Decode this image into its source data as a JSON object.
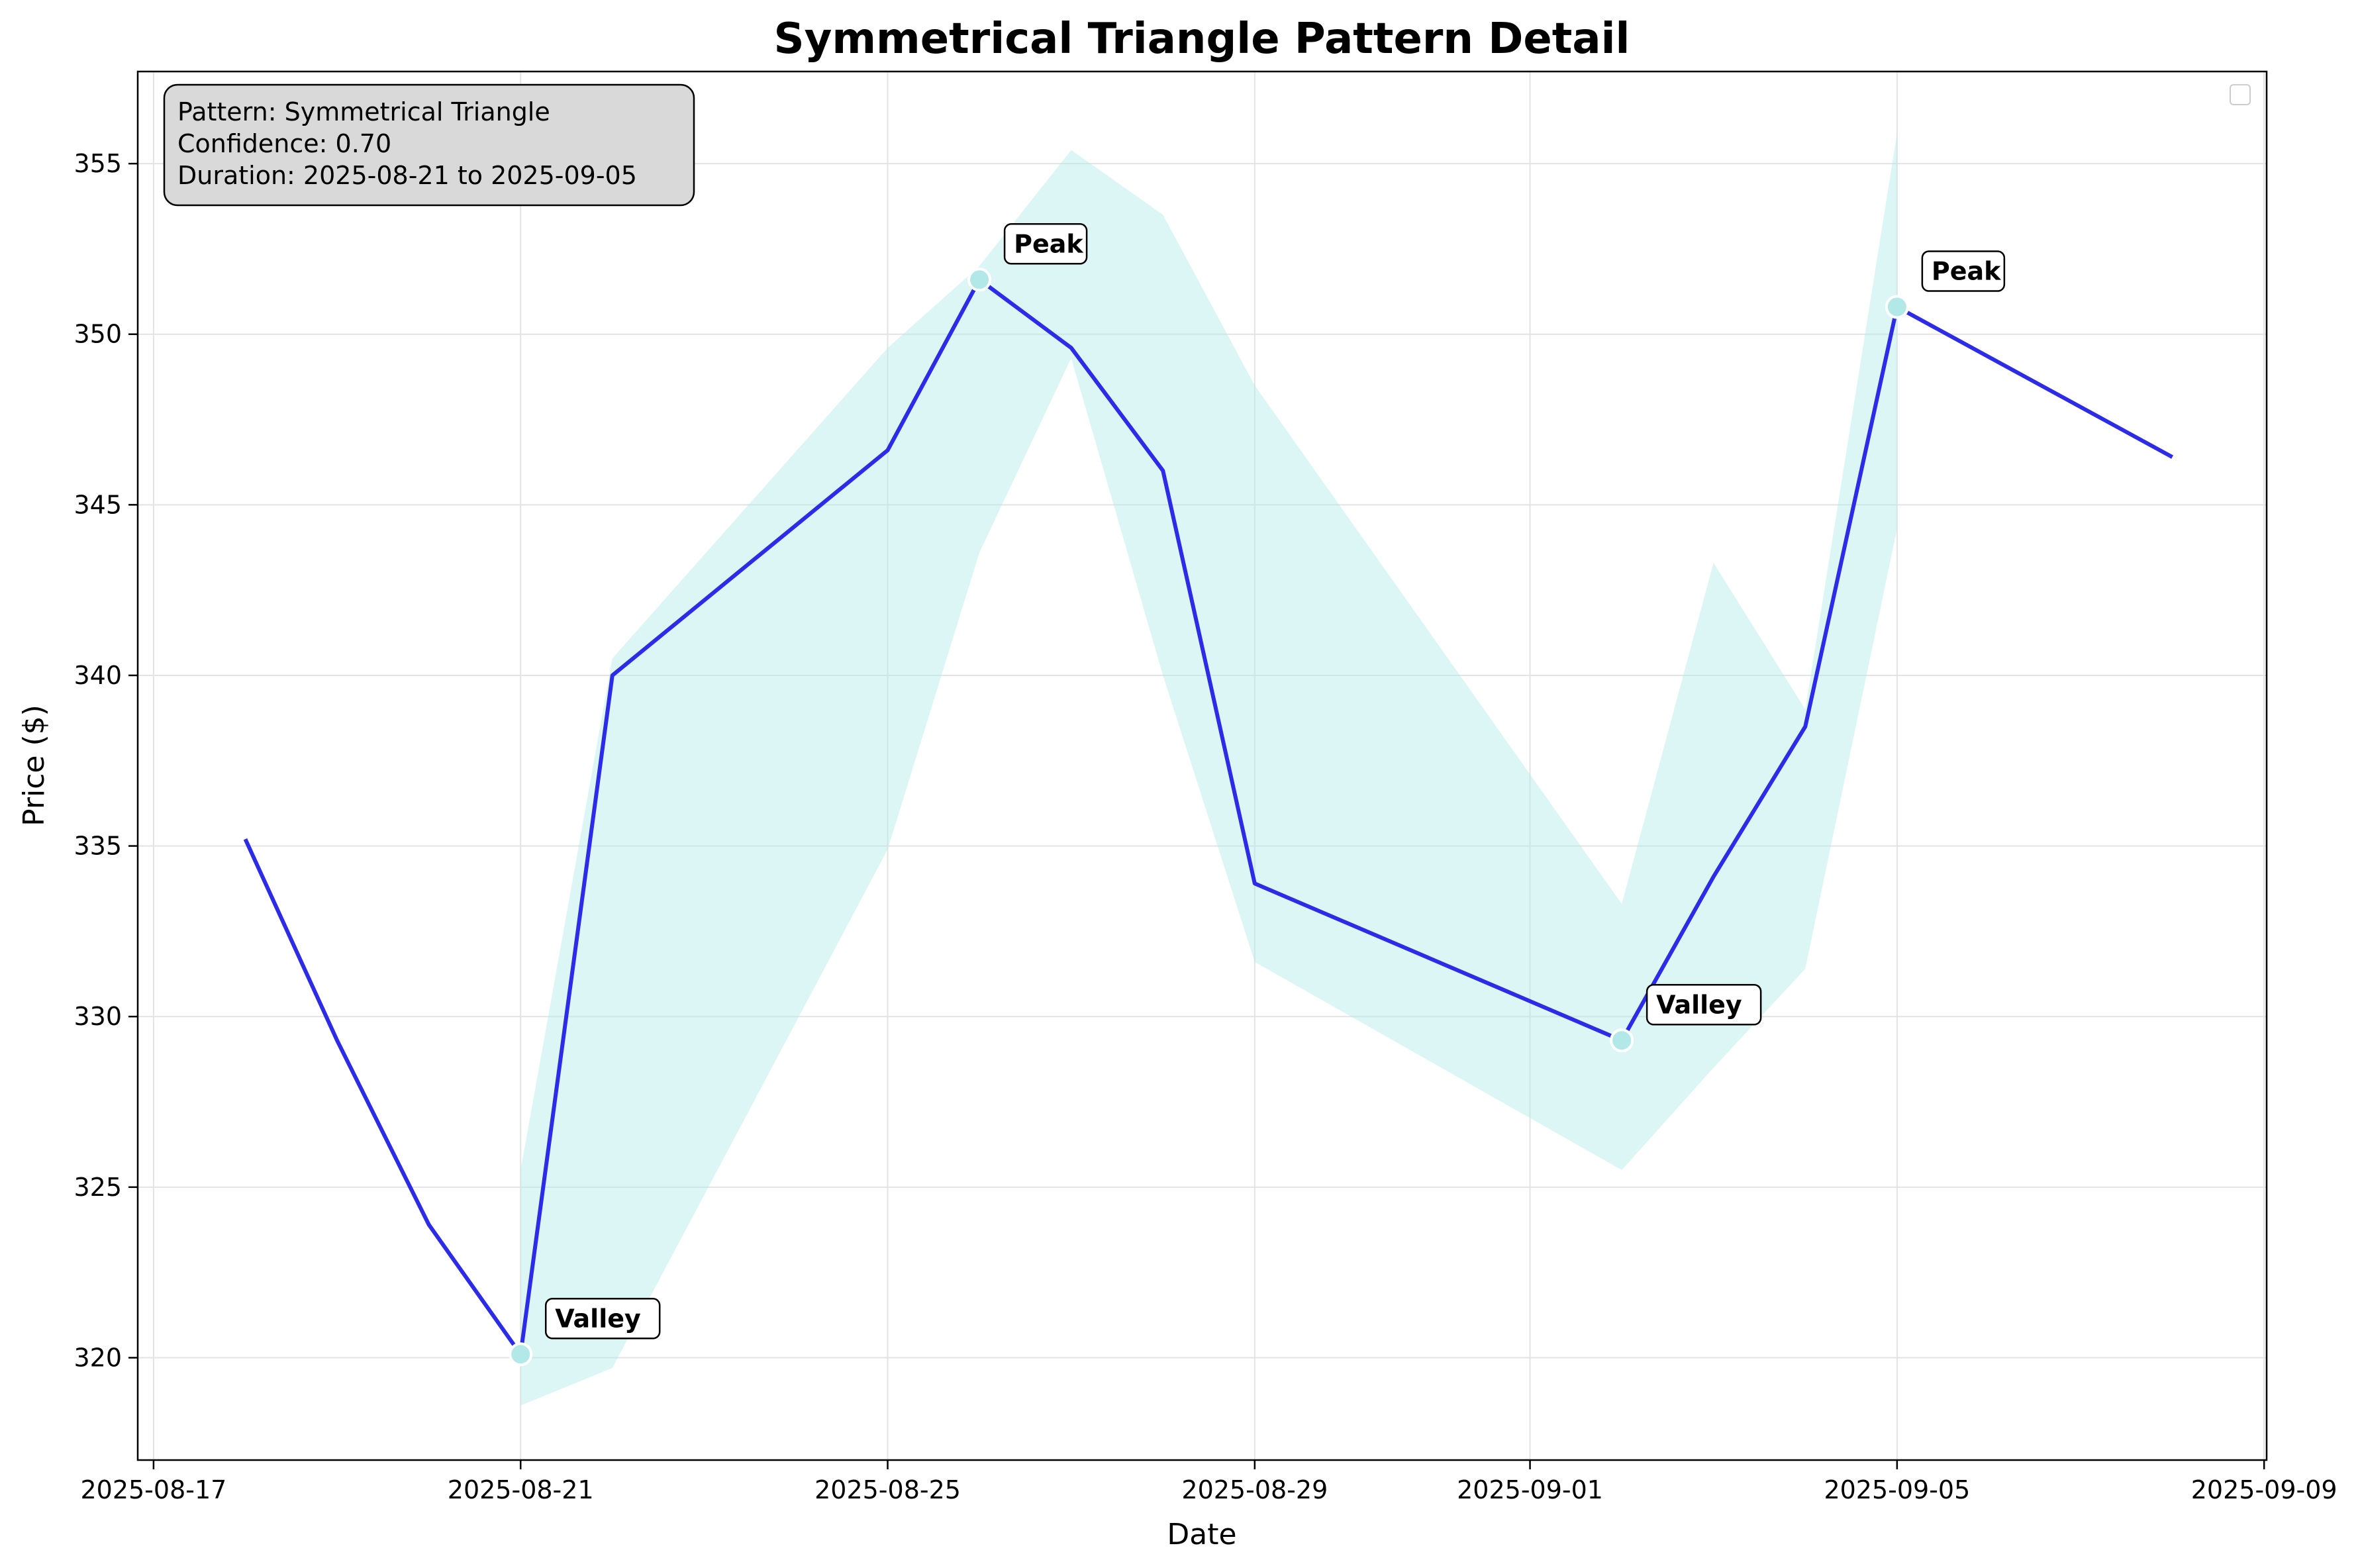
{
  "chart_data": {
    "type": "line",
    "title": "Symmetrical Triangle Pattern Detail",
    "xlabel": "Date",
    "ylabel": "Price ($)",
    "x_ticks": [
      "2025-08-17",
      "2025-08-21",
      "2025-08-25",
      "2025-08-29",
      "2025-09-01",
      "2025-09-05",
      "2025-09-09"
    ],
    "y_ticks": [
      320,
      325,
      330,
      335,
      340,
      345,
      350,
      355
    ],
    "xlim": [
      "2025-08-17",
      "2025-09-09"
    ],
    "ylim": [
      317,
      357.7
    ],
    "grid": true,
    "legend": {
      "placement": "top-right",
      "entries": []
    },
    "series": [
      {
        "type": "line",
        "color": "#2b2be8",
        "x": [
          "2025-08-18",
          "2025-08-19",
          "2025-08-20",
          "2025-08-21",
          "2025-08-22",
          "2025-08-25",
          "2025-08-26",
          "2025-08-27",
          "2025-08-28",
          "2025-08-29",
          "2025-09-02",
          "2025-09-03",
          "2025-09-04",
          "2025-09-05",
          "2025-09-08"
        ],
        "y": [
          335.2,
          329.3,
          323.9,
          320.1,
          340.0,
          346.6,
          351.6,
          349.6,
          346.0,
          333.9,
          329.3,
          334.1,
          338.5,
          350.8,
          346.4
        ]
      }
    ],
    "band": {
      "color": "#b2e8e8",
      "x": [
        "2025-08-21",
        "2025-08-22",
        "2025-08-25",
        "2025-08-26",
        "2025-08-27",
        "2025-08-28",
        "2025-08-29",
        "2025-09-02",
        "2025-09-03",
        "2025-09-04",
        "2025-09-05"
      ],
      "upper": [
        325.5,
        340.5,
        349.6,
        352.0,
        355.4,
        353.5,
        348.5,
        333.3,
        343.3,
        339.0,
        355.9
      ],
      "lower": [
        318.6,
        319.7,
        334.9,
        343.6,
        349.3,
        340.0,
        331.6,
        325.5,
        328.5,
        331.4,
        344.3
      ]
    },
    "markers": [
      {
        "x": "2025-08-21",
        "y": 320.1,
        "label": "Valley"
      },
      {
        "x": "2025-08-26",
        "y": 351.6,
        "label": "Peak"
      },
      {
        "x": "2025-09-02",
        "y": 329.3,
        "label": "Valley"
      },
      {
        "x": "2025-09-05",
        "y": 350.8,
        "label": "Peak"
      }
    ],
    "marker_color": "#b2e8e8",
    "info_box": {
      "lines": [
        "Pattern: Symmetrical Triangle",
        "Confidence: 0.70",
        "Duration: 2025-08-21 to 2025-09-05"
      ],
      "background": "#d9d9d9"
    }
  }
}
